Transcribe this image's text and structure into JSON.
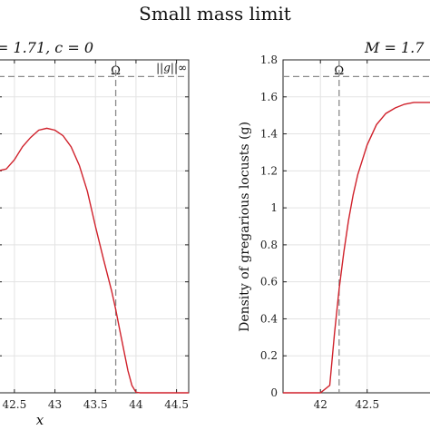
{
  "figure": {
    "title": "Small mass limit"
  },
  "chart_data": [
    {
      "type": "line",
      "title": "= 1.71, c = 0",
      "xlabel": "x",
      "ylabel": "",
      "xlim": [
        42.3,
        44.65
      ],
      "ylim": [
        0,
        1.8
      ],
      "xticks": [
        "42.5",
        "43",
        "43.5",
        "44",
        "44.5"
      ],
      "grid": true,
      "series": [
        {
          "name": "",
          "color": "#d0212b",
          "x": [
            42.3,
            42.4,
            42.5,
            42.6,
            42.7,
            42.8,
            42.9,
            43.0,
            43.1,
            43.2,
            43.3,
            43.4,
            43.5,
            43.6,
            43.7,
            43.75,
            43.8,
            43.85,
            43.9,
            43.95,
            44.0,
            44.05,
            44.1,
            44.3,
            44.5,
            44.65
          ],
          "y": [
            1.2,
            1.21,
            1.26,
            1.33,
            1.38,
            1.42,
            1.43,
            1.42,
            1.39,
            1.33,
            1.23,
            1.09,
            0.9,
            0.72,
            0.55,
            0.45,
            0.34,
            0.23,
            0.12,
            0.04,
            0.003,
            0.0,
            0.0,
            0.0,
            0.0,
            0.0
          ]
        }
      ],
      "annotations": {
        "omega_label": "Ω",
        "omega_x": 43.75,
        "norm_label": "||g||∞",
        "norm_y": 1.71
      }
    },
    {
      "type": "line",
      "title": "M = 1.7",
      "xlabel": "",
      "ylabel": "Density of gregarious locusts (g)",
      "xlim": [
        41.6,
        43.25
      ],
      "ylim": [
        0,
        1.8
      ],
      "xticks": [
        "42",
        "42.5"
      ],
      "yticks": [
        "0",
        "0.2",
        "0.4",
        "0.6",
        "0.8",
        "1",
        "1.2",
        "1.4",
        "1.6",
        "1.8"
      ],
      "grid": true,
      "series": [
        {
          "name": "",
          "color": "#d0212b",
          "x": [
            41.6,
            42.0,
            42.1,
            42.15,
            42.2,
            42.25,
            42.3,
            42.35,
            42.4,
            42.5,
            42.6,
            42.7,
            42.8,
            42.9,
            43.0,
            43.1,
            43.2,
            43.25
          ],
          "y": [
            0.0,
            0.0,
            0.04,
            0.32,
            0.56,
            0.76,
            0.93,
            1.07,
            1.18,
            1.34,
            1.45,
            1.51,
            1.54,
            1.56,
            1.57,
            1.57,
            1.57,
            1.57
          ]
        }
      ],
      "annotations": {
        "omega_label": "Ω",
        "omega_x": 42.2,
        "norm_y": 1.71
      }
    }
  ]
}
